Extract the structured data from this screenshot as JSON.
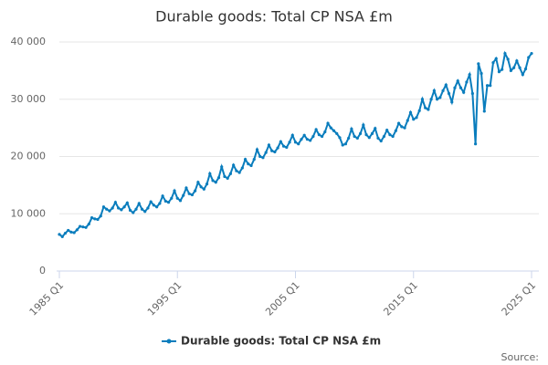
{
  "chart_data": {
    "type": "line",
    "title": "Durable goods: Total CP NSA £m",
    "source": "Source:",
    "categories": [
      "1985 Q1",
      null,
      null,
      null,
      null,
      null,
      null,
      null,
      null,
      null,
      null,
      null,
      null,
      null,
      null,
      null,
      null,
      null,
      null,
      null,
      null,
      null,
      null,
      null,
      null,
      null,
      null,
      null,
      null,
      null,
      null,
      null,
      null,
      null,
      null,
      null,
      null,
      null,
      null,
      null,
      "1995 Q1",
      null,
      null,
      null,
      null,
      null,
      null,
      null,
      null,
      null,
      null,
      null,
      null,
      null,
      null,
      null,
      null,
      null,
      null,
      null,
      null,
      null,
      null,
      null,
      null,
      null,
      null,
      null,
      null,
      null,
      null,
      null,
      null,
      null,
      null,
      null,
      null,
      null,
      null,
      null,
      "2005 Q1",
      null,
      null,
      null,
      null,
      null,
      null,
      null,
      null,
      null,
      null,
      null,
      null,
      null,
      null,
      null,
      null,
      null,
      null,
      null,
      null,
      null,
      null,
      null,
      null,
      null,
      null,
      null,
      null,
      null,
      null,
      null,
      null,
      null,
      null,
      null,
      null,
      null,
      null,
      null,
      "2015 Q1",
      null,
      null,
      null,
      null,
      null,
      null,
      null,
      null,
      null,
      null,
      null,
      null,
      null,
      null,
      null,
      null,
      null,
      null,
      null,
      null,
      null,
      null,
      null,
      null,
      null,
      null,
      null,
      null,
      null,
      null,
      null,
      null,
      null,
      null,
      null,
      null,
      null,
      null,
      null,
      "2025 Q1"
    ],
    "series": [
      {
        "name": "Durable goods: Total CP NSA £m",
        "color": "#0a7dbd",
        "values": [
          6400,
          6000,
          6600,
          7100,
          6800,
          6700,
          7200,
          7800,
          7700,
          7600,
          8200,
          9300,
          9100,
          9000,
          9600,
          11200,
          10800,
          10500,
          11000,
          12000,
          11000,
          10700,
          11200,
          11900,
          10600,
          10200,
          10800,
          11800,
          10800,
          10400,
          11000,
          12100,
          11500,
          11200,
          11800,
          13100,
          12200,
          12000,
          12700,
          14000,
          12700,
          12300,
          13200,
          14500,
          13500,
          13300,
          14000,
          15500,
          14700,
          14300,
          15200,
          17000,
          15800,
          15500,
          16300,
          18200,
          16500,
          16200,
          17000,
          18500,
          17500,
          17200,
          18000,
          19500,
          18700,
          18400,
          19500,
          21200,
          20000,
          19800,
          20700,
          22000,
          21000,
          20800,
          21500,
          22600,
          21800,
          21600,
          22500,
          23700,
          22500,
          22200,
          23000,
          23700,
          23000,
          22800,
          23500,
          24700,
          23800,
          23500,
          24300,
          25800,
          25000,
          24500,
          24000,
          23300,
          22000,
          22200,
          23200,
          24800,
          23500,
          23200,
          24000,
          25500,
          23800,
          23300,
          24000,
          24900,
          23200,
          22700,
          23500,
          24600,
          23800,
          23500,
          24500,
          25800,
          25200,
          25000,
          26300,
          27700,
          26500,
          26800,
          28000,
          30000,
          28500,
          28200,
          30000,
          31500,
          30000,
          30300,
          31500,
          32500,
          31000,
          29500,
          32000,
          33200,
          32000,
          31200,
          33000,
          34300,
          31000,
          22200,
          36200,
          34500,
          27900,
          32400,
          32400,
          36400,
          37100,
          34800,
          35200,
          38000,
          37000,
          35000,
          35500,
          36700,
          35500,
          34300,
          35300,
          37300,
          38000
        ]
      }
    ],
    "ylim": [
      0,
      40000
    ],
    "yticks": [
      0,
      {
        "value": 10000,
        "label": "10 000"
      },
      {
        "value": 20000,
        "label": "20 000"
      },
      {
        "value": 30000,
        "label": "30 000"
      },
      {
        "value": 40000,
        "label": "40 000"
      }
    ],
    "grid": true
  }
}
